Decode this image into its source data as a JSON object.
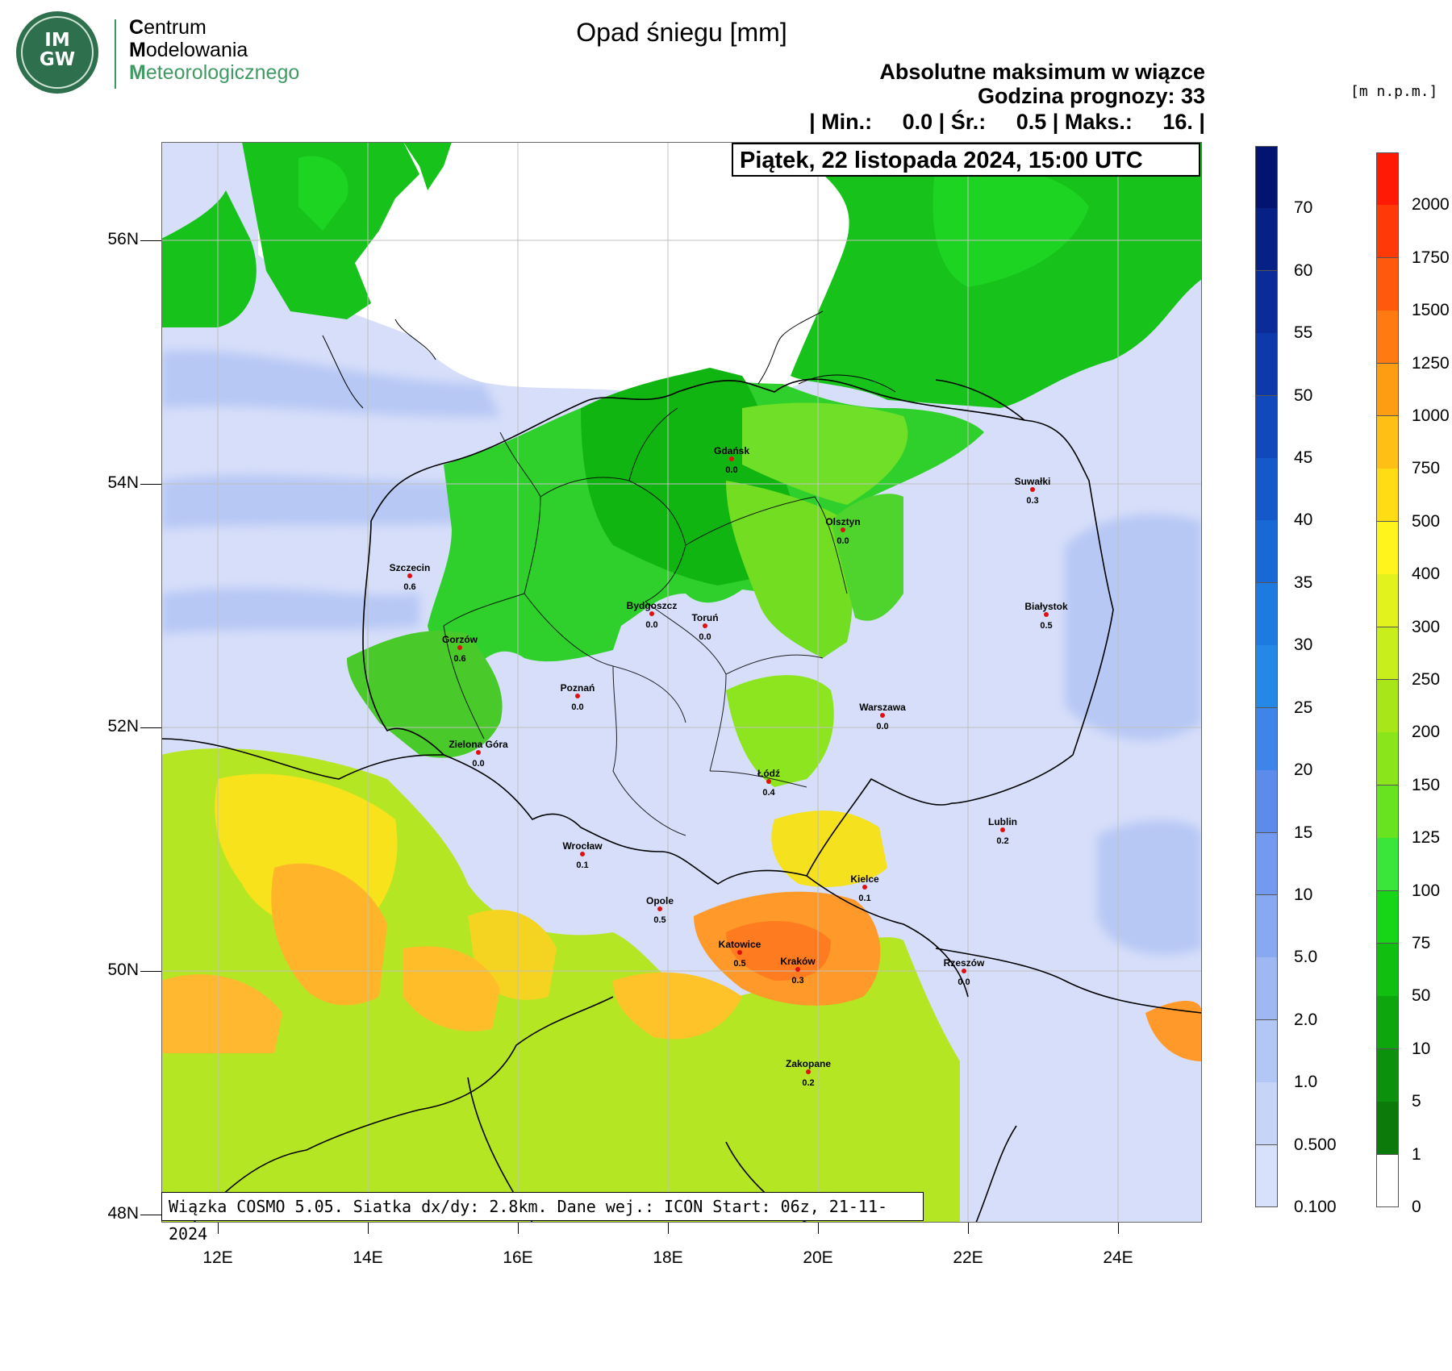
{
  "logo": {
    "mark": "IM\nGW",
    "line1_initial": "C",
    "line1_rest": "entrum",
    "line2_initial": "M",
    "line2_rest": "odelowania",
    "line3_initial": "M",
    "line3_rest": "eteorologicznego"
  },
  "title": "Opad śniegu [mm]",
  "info": {
    "line1": "Absolutne maksimum w wiązce",
    "line2": "Godzina prognozy: 33",
    "line3": "| Min.:     0.0 | Śr.:     0.5 | Maks.:     16. |"
  },
  "date": "Piątek, 22 listopada 2024, 15:00 UTC",
  "model_info": "Wiązka COSMO 5.05. Siatka dx/dy: 2.8km. Dane wej.: ICON Start: 06z, 21-11-2024",
  "axes": {
    "lat_ticks": [
      "56N",
      "54N",
      "52N",
      "50N",
      "48N"
    ],
    "lon_ticks": [
      "12E",
      "14E",
      "16E",
      "18E",
      "20E",
      "22E",
      "24E"
    ]
  },
  "cities": [
    {
      "name": "Gdańsk",
      "value": "0.0"
    },
    {
      "name": "Suwałki",
      "value": "0.3"
    },
    {
      "name": "Olsztyn",
      "value": "0.0"
    },
    {
      "name": "Szczecin",
      "value": "0.6"
    },
    {
      "name": "Bydgoszcz",
      "value": "0.0"
    },
    {
      "name": "Toruń",
      "value": "0.0"
    },
    {
      "name": "Białystok",
      "value": "0.5"
    },
    {
      "name": "Gorzów",
      "value": "0.6"
    },
    {
      "name": "Poznań",
      "value": "0.0"
    },
    {
      "name": "Warszawa",
      "value": "0.0"
    },
    {
      "name": "Zielona Góra",
      "value": "0.0"
    },
    {
      "name": "Łódź",
      "value": "0.4"
    },
    {
      "name": "Lublin",
      "value": "0.2"
    },
    {
      "name": "Wrocław",
      "value": "0.1"
    },
    {
      "name": "Kielce",
      "value": "0.1"
    },
    {
      "name": "Opole",
      "value": "0.5"
    },
    {
      "name": "Katowice",
      "value": "0.5"
    },
    {
      "name": "Kraków",
      "value": "0.3"
    },
    {
      "name": "Rzeszów",
      "value": "0.0"
    },
    {
      "name": "Zakopane",
      "value": "0.2"
    }
  ],
  "precip_scale": {
    "labels": [
      "0.100",
      "0.500",
      "1.0",
      "2.0",
      "5.0",
      "10",
      "15",
      "20",
      "25",
      "30",
      "35",
      "40",
      "45",
      "50",
      "55",
      "60",
      "70"
    ],
    "colors": [
      "#d8e1fb",
      "#c6d4f8",
      "#b3c7f6",
      "#9fb8f4",
      "#89a8f2",
      "#7399f0",
      "#5c8bec",
      "#3d85e8",
      "#2488e6",
      "#1c7ae0",
      "#1868d6",
      "#1558ca",
      "#1148bb",
      "#0d39aa",
      "#0a2b98",
      "#062085",
      "#021470"
    ]
  },
  "height_scale": {
    "unit": "[m n.p.m.]",
    "labels": [
      "0",
      "1",
      "5",
      "10",
      "50",
      "75",
      "100",
      "125",
      "150",
      "200",
      "250",
      "300",
      "400",
      "500",
      "750",
      "1000",
      "1250",
      "1500",
      "1750",
      "2000"
    ],
    "colors": [
      "#ffffff",
      "#0b7a0b",
      "#0c910c",
      "#0da70d",
      "#11bf11",
      "#17d617",
      "#3ae63a",
      "#67e320",
      "#8be51b",
      "#a8e61a",
      "#c8ee1c",
      "#e2f21c",
      "#fff41c",
      "#ffdc14",
      "#ffbf14",
      "#ff9d12",
      "#ff7a10",
      "#ff5a0c",
      "#ff3a08",
      "#ff1a06"
    ]
  }
}
